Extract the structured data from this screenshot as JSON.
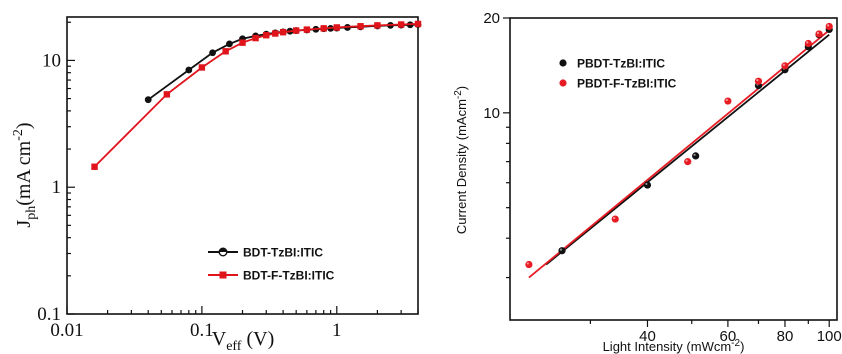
{
  "chart_data": [
    {
      "type": "line",
      "x_scale": "log",
      "y_scale": "log",
      "xlim": [
        0.01,
        4
      ],
      "ylim": [
        0.1,
        22
      ],
      "x_ticks": [
        {
          "value": 0.01,
          "label": "0.01"
        },
        {
          "value": 0.1,
          "label": "0.1"
        },
        {
          "value": 1,
          "label": "1"
        }
      ],
      "y_ticks": [
        {
          "value": 0.1,
          "label": "0.1"
        },
        {
          "value": 1,
          "label": "1"
        },
        {
          "value": 10,
          "label": "10"
        }
      ],
      "xlabel": {
        "main": "V",
        "sub": "eff",
        "unit": " (V)"
      },
      "ylabel": {
        "main": "J",
        "sub": "ph",
        "unit": "(mA cm",
        "exp": "-2",
        "close": ")"
      },
      "legend_position": "bottom-right",
      "series": [
        {
          "name": "BDT-TzBI:ITIC",
          "color": "#111111",
          "marker": "circle",
          "x": [
            0.04,
            0.08,
            0.12,
            0.16,
            0.2,
            0.25,
            0.3,
            0.35,
            0.4,
            0.45,
            0.5,
            0.6,
            0.7,
            0.8,
            0.9,
            1.0,
            1.2,
            1.5,
            2.0,
            2.5,
            3.0,
            3.5,
            4.0
          ],
          "y": [
            4.9,
            8.4,
            11.5,
            13.5,
            14.8,
            15.6,
            16.1,
            16.5,
            16.8,
            17.0,
            17.2,
            17.4,
            17.6,
            17.8,
            17.9,
            18.0,
            18.2,
            18.4,
            18.7,
            18.9,
            19.0,
            19.1,
            19.2
          ]
        },
        {
          "name": "BDT-F-TzBI:ITIC",
          "color": "#e0141b",
          "marker": "square",
          "x": [
            0.016,
            0.055,
            0.1,
            0.15,
            0.2,
            0.25,
            0.3,
            0.35,
            0.4,
            0.5,
            0.6,
            0.8,
            1.0,
            1.5,
            2.0,
            3.0,
            4.0
          ],
          "y": [
            1.45,
            5.4,
            8.8,
            11.8,
            13.8,
            15.0,
            15.8,
            16.3,
            16.7,
            17.2,
            17.5,
            17.9,
            18.2,
            18.6,
            18.9,
            19.2,
            19.4
          ]
        }
      ]
    },
    {
      "type": "scatter",
      "x_scale": "log",
      "y_scale": "log",
      "xlim": [
        20,
        104
      ],
      "ylim": [
        2.2,
        20
      ],
      "x_ticks": [
        {
          "value": 40,
          "label": "40"
        },
        {
          "value": 60,
          "label": "60"
        },
        {
          "value": 80,
          "label": "80"
        },
        {
          "value": 100,
          "label": "100"
        }
      ],
      "y_ticks": [
        {
          "value": 10,
          "label": "10"
        },
        {
          "value": 20,
          "label": "20"
        }
      ],
      "xlabel": {
        "main": "Light Intensity (mWcm",
        "exp": "-2",
        "close": ")"
      },
      "ylabel": {
        "main": "Current Density (mAcm",
        "exp": "-2",
        "close": ")"
      },
      "legend_position": "top-left",
      "series": [
        {
          "name": "PBDT-TzBI:ITIC",
          "color": "#111111",
          "x": [
            26,
            40,
            51,
            70,
            80,
            90,
            95,
            100
          ],
          "y": [
            3.65,
            5.9,
            7.3,
            12.2,
            13.7,
            16.2,
            17.7,
            18.4
          ],
          "fit": {
            "x": [
              24,
              100
            ],
            "y": [
              3.3,
              17.7
            ]
          }
        },
        {
          "name": "PBDT-F-TzBI:ITIC",
          "color": "#e81c24",
          "x": [
            22,
            34,
            49,
            60,
            70,
            80,
            90,
            95,
            100
          ],
          "y": [
            3.3,
            4.6,
            7.0,
            10.9,
            12.6,
            14.1,
            16.6,
            17.8,
            18.8
          ],
          "fit": {
            "x": [
              22,
              100
            ],
            "y": [
              3.0,
              18.3
            ]
          }
        }
      ]
    }
  ]
}
